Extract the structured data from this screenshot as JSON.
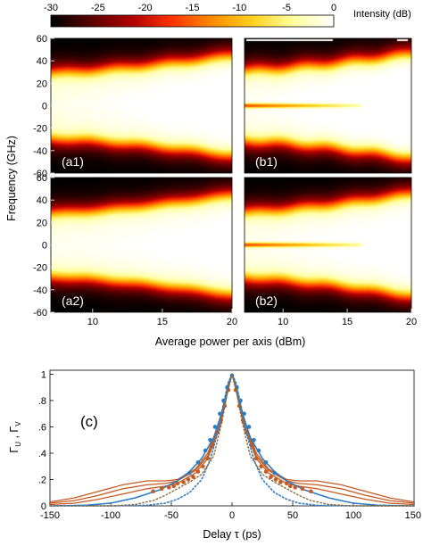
{
  "colorbar": {
    "ticks": [
      "-30",
      "-25",
      "-20",
      "-15",
      "-10",
      "-5",
      "0"
    ],
    "label": "Intensity (dB)",
    "range": [
      -30,
      0
    ],
    "colormap": [
      "#000000",
      "#5a0000",
      "#b00000",
      "#ff3300",
      "#ff8c00",
      "#ffd21f",
      "#ffff9e",
      "#ffffff"
    ]
  },
  "chart_data": [
    {
      "type": "heatmap",
      "panels": [
        {
          "label": "(a1)",
          "edge_start": 28,
          "edge_end": 43,
          "flare": 3,
          "bright_start": 0.25,
          "bright_end": 0.7,
          "center_line": false,
          "top_bar": false
        },
        {
          "label": "(b1)",
          "edge_start": 30,
          "edge_end": 45,
          "flare": 4,
          "bright_start": 0.35,
          "bright_end": 0.8,
          "center_line": true,
          "top_bar": true
        },
        {
          "label": "(a2)",
          "edge_start": 27,
          "edge_end": 43,
          "flare": 2,
          "bright_start": 0.3,
          "bright_end": 0.6,
          "center_line": false,
          "top_bar": false
        },
        {
          "label": "(b2)",
          "edge_start": 28,
          "edge_end": 44,
          "flare": 3,
          "bright_start": 0.3,
          "bright_end": 0.65,
          "center_line": true,
          "top_bar": false
        }
      ],
      "x_ticks": [
        "10",
        "15",
        "20"
      ],
      "x_tick_values": [
        10,
        15,
        20
      ],
      "xlim": [
        7,
        20
      ],
      "y_ticks": [
        "60",
        "40",
        "20",
        "0",
        "-20",
        "-40",
        "-60"
      ],
      "y_tick_values": [
        60,
        40,
        20,
        0,
        -20,
        -40,
        -60
      ],
      "ylim": [
        -60,
        60
      ],
      "xlabel": "Average power per axis (dBm)",
      "ylabel": "Frequency (GHz)"
    },
    {
      "type": "line",
      "label": "(c)",
      "xlabel": "Delay τ (ps)",
      "ylabel_main": "Γ",
      "ylabel_sub_u": "U",
      "ylabel_sep": " , ",
      "ylabel_sub_v": "V",
      "xlim": [
        -150,
        150
      ],
      "ylim": [
        0,
        1.03
      ],
      "x_ticks": [
        "-150",
        "-100",
        "-50",
        "0",
        "50",
        "100",
        "150"
      ],
      "x_tick_values": [
        -150,
        -100,
        -50,
        0,
        50,
        100,
        150
      ],
      "y_ticks": [
        "0",
        ".2",
        ".4",
        ".6",
        ".8",
        "1"
      ],
      "y_tick_values": [
        0,
        0.2,
        0.4,
        0.6,
        0.8,
        1
      ],
      "series": [
        {
          "style": "solid",
          "color": "#c55a22",
          "width": 1.3,
          "points": [
            [
              -150,
              0.03
            ],
            [
              -130,
              0.06
            ],
            [
              -110,
              0.11
            ],
            [
              -90,
              0.16
            ],
            [
              -70,
              0.19
            ],
            [
              -55,
              0.19
            ],
            [
              -45,
              0.2
            ],
            [
              -30,
              0.28
            ],
            [
              -20,
              0.4
            ],
            [
              -10,
              0.65
            ],
            [
              -4,
              0.88
            ],
            [
              0,
              1.0
            ],
            [
              4,
              0.88
            ],
            [
              10,
              0.65
            ],
            [
              20,
              0.4
            ],
            [
              30,
              0.28
            ],
            [
              45,
              0.2
            ],
            [
              55,
              0.19
            ],
            [
              70,
              0.19
            ],
            [
              90,
              0.16
            ],
            [
              110,
              0.11
            ],
            [
              130,
              0.06
            ],
            [
              150,
              0.03
            ]
          ]
        },
        {
          "style": "solid",
          "color": "#c55a22",
          "width": 1.3,
          "points": [
            [
              -150,
              0.02
            ],
            [
              -130,
              0.04
            ],
            [
              -110,
              0.08
            ],
            [
              -90,
              0.13
            ],
            [
              -70,
              0.16
            ],
            [
              -55,
              0.17
            ],
            [
              -45,
              0.19
            ],
            [
              -30,
              0.27
            ],
            [
              -20,
              0.38
            ],
            [
              -10,
              0.62
            ],
            [
              -4,
              0.86
            ],
            [
              0,
              1.0
            ],
            [
              4,
              0.86
            ],
            [
              10,
              0.62
            ],
            [
              20,
              0.38
            ],
            [
              30,
              0.27
            ],
            [
              45,
              0.19
            ],
            [
              55,
              0.17
            ],
            [
              70,
              0.16
            ],
            [
              90,
              0.13
            ],
            [
              110,
              0.08
            ],
            [
              130,
              0.04
            ],
            [
              150,
              0.02
            ]
          ]
        },
        {
          "style": "solid",
          "color": "#c55a22",
          "width": 1.3,
          "points": [
            [
              -150,
              0.01
            ],
            [
              -130,
              0.02
            ],
            [
              -110,
              0.05
            ],
            [
              -90,
              0.09
            ],
            [
              -70,
              0.13
            ],
            [
              -55,
              0.15
            ],
            [
              -45,
              0.17
            ],
            [
              -30,
              0.25
            ],
            [
              -20,
              0.36
            ],
            [
              -10,
              0.6
            ],
            [
              -4,
              0.85
            ],
            [
              0,
              1.0
            ],
            [
              4,
              0.85
            ],
            [
              10,
              0.6
            ],
            [
              20,
              0.36
            ],
            [
              30,
              0.25
            ],
            [
              45,
              0.17
            ],
            [
              55,
              0.15
            ],
            [
              70,
              0.13
            ],
            [
              90,
              0.09
            ],
            [
              110,
              0.05
            ],
            [
              130,
              0.02
            ],
            [
              150,
              0.01
            ]
          ]
        },
        {
          "style": "solid",
          "color": "#2e7bbf",
          "width": 1.6,
          "points": [
            [
              -150,
              0.0
            ],
            [
              -120,
              0.005
            ],
            [
              -100,
              0.02
            ],
            [
              -80,
              0.06
            ],
            [
              -60,
              0.12
            ],
            [
              -45,
              0.19
            ],
            [
              -35,
              0.26
            ],
            [
              -25,
              0.36
            ],
            [
              -15,
              0.52
            ],
            [
              -8,
              0.72
            ],
            [
              -3,
              0.92
            ],
            [
              0,
              1.0
            ],
            [
              3,
              0.92
            ],
            [
              8,
              0.72
            ],
            [
              15,
              0.52
            ],
            [
              25,
              0.36
            ],
            [
              35,
              0.26
            ],
            [
              45,
              0.19
            ],
            [
              60,
              0.12
            ],
            [
              80,
              0.06
            ],
            [
              100,
              0.02
            ],
            [
              120,
              0.005
            ],
            [
              150,
              0.0
            ]
          ]
        },
        {
          "style": "markers",
          "color": "#c55a22",
          "points": [
            [
              -65,
              0.11
            ],
            [
              -58,
              0.13
            ],
            [
              -52,
              0.14
            ],
            [
              -48,
              0.15
            ],
            [
              -45,
              0.17
            ],
            [
              -40,
              0.18
            ],
            [
              -36,
              0.2
            ],
            [
              -32,
              0.22
            ],
            [
              -28,
              0.26
            ],
            [
              -24,
              0.3
            ],
            [
              -20,
              0.36
            ],
            [
              -16,
              0.46
            ],
            [
              -12,
              0.56
            ],
            [
              -9,
              0.65
            ],
            [
              -6,
              0.76
            ],
            [
              -3,
              0.88
            ],
            [
              0,
              0.99
            ],
            [
              3,
              0.88
            ],
            [
              6,
              0.76
            ],
            [
              9,
              0.65
            ],
            [
              12,
              0.56
            ],
            [
              16,
              0.46
            ],
            [
              20,
              0.36
            ],
            [
              24,
              0.3
            ],
            [
              28,
              0.26
            ],
            [
              32,
              0.22
            ],
            [
              36,
              0.2
            ],
            [
              40,
              0.18
            ],
            [
              45,
              0.17
            ],
            [
              48,
              0.15
            ],
            [
              52,
              0.14
            ],
            [
              58,
              0.13
            ],
            [
              65,
              0.11
            ]
          ]
        },
        {
          "style": "markers",
          "color": "#2e7bbf",
          "points": [
            [
              -35,
              0.25
            ],
            [
              -28,
              0.33
            ],
            [
              -22,
              0.42
            ],
            [
              -18,
              0.5
            ],
            [
              -14,
              0.6
            ],
            [
              -10,
              0.7
            ],
            [
              -7,
              0.8
            ],
            [
              -4,
              0.9
            ],
            [
              0,
              0.99
            ],
            [
              4,
              0.9
            ],
            [
              7,
              0.8
            ],
            [
              10,
              0.7
            ],
            [
              14,
              0.6
            ],
            [
              18,
              0.5
            ],
            [
              22,
              0.42
            ],
            [
              28,
              0.33
            ],
            [
              35,
              0.25
            ]
          ]
        },
        {
          "style": "dotted",
          "color": "#2e7bbf",
          "width": 1.6,
          "points": [
            [
              -150,
              0.0
            ],
            [
              -100,
              0.0
            ],
            [
              -70,
              0.005
            ],
            [
              -55,
              0.02
            ],
            [
              -45,
              0.05
            ],
            [
              -35,
              0.1
            ],
            [
              -25,
              0.2
            ],
            [
              -18,
              0.35
            ],
            [
              -12,
              0.55
            ],
            [
              -7,
              0.78
            ],
            [
              -3,
              0.94
            ],
            [
              0,
              1.0
            ],
            [
              3,
              0.94
            ],
            [
              7,
              0.78
            ],
            [
              12,
              0.55
            ],
            [
              18,
              0.35
            ],
            [
              25,
              0.2
            ],
            [
              35,
              0.1
            ],
            [
              45,
              0.05
            ],
            [
              55,
              0.02
            ],
            [
              70,
              0.005
            ],
            [
              100,
              0.0
            ],
            [
              150,
              0.0
            ]
          ]
        },
        {
          "style": "dotted",
          "color": "#8a6a3a",
          "width": 1.4,
          "points": [
            [
              -150,
              0.0
            ],
            [
              -100,
              0.0
            ],
            [
              -80,
              0.01
            ],
            [
              -65,
              0.04
            ],
            [
              -55,
              0.08
            ],
            [
              -45,
              0.13
            ],
            [
              -35,
              0.18
            ],
            [
              -25,
              0.24
            ],
            [
              -15,
              0.38
            ],
            [
              -8,
              0.65
            ],
            [
              -3,
              0.9
            ],
            [
              0,
              1.0
            ],
            [
              3,
              0.9
            ],
            [
              8,
              0.65
            ],
            [
              15,
              0.38
            ],
            [
              25,
              0.24
            ],
            [
              35,
              0.18
            ],
            [
              45,
              0.13
            ],
            [
              55,
              0.08
            ],
            [
              65,
              0.04
            ],
            [
              80,
              0.01
            ],
            [
              100,
              0.0
            ],
            [
              150,
              0.0
            ]
          ]
        }
      ]
    }
  ]
}
